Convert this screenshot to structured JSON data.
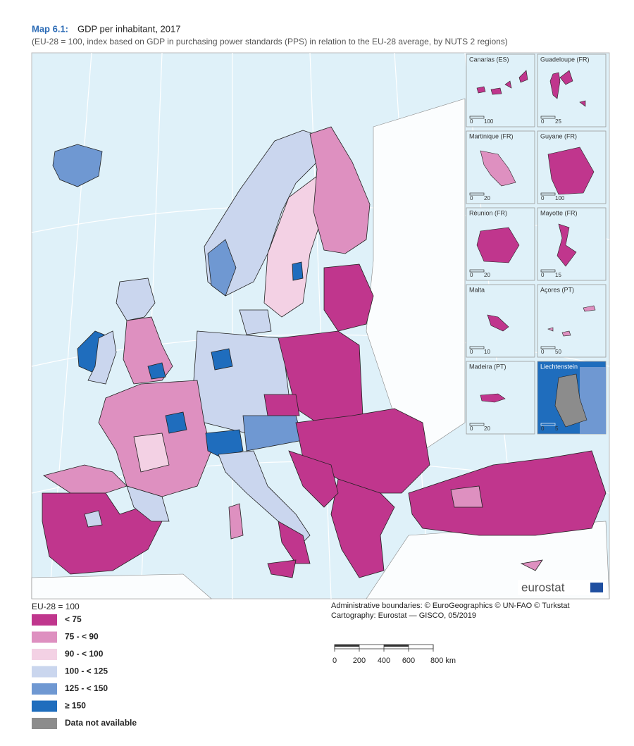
{
  "header": {
    "map_number": "Map 6.1:",
    "title": "GDP per inhabitant, 2017",
    "subtitle": "(EU-28 = 100, index based on GDP in purchasing power standards (PPS) in relation to the EU-28 average, by NUTS 2 regions)"
  },
  "insets": [
    {
      "name": "Canarias (ES)",
      "scale": [
        "0",
        "100"
      ]
    },
    {
      "name": "Guadeloupe (FR)",
      "scale": [
        "0",
        "25"
      ]
    },
    {
      "name": "Martinique (FR)",
      "scale": [
        "0",
        "20"
      ]
    },
    {
      "name": "Guyane (FR)",
      "scale": [
        "0",
        "100"
      ]
    },
    {
      "name": "Réunion (FR)",
      "scale": [
        "0",
        "20"
      ]
    },
    {
      "name": "Mayotte (FR)",
      "scale": [
        "0",
        "15"
      ]
    },
    {
      "name": "Malta",
      "scale": [
        "0",
        "10"
      ]
    },
    {
      "name": "Açores (PT)",
      "scale": [
        "0",
        "50"
      ]
    },
    {
      "name": "Madeira (PT)",
      "scale": [
        "0",
        "20"
      ]
    },
    {
      "name": "Liechtenstein",
      "scale": [
        "0",
        "5"
      ]
    }
  ],
  "logo": "eurostat",
  "legend": {
    "title": "EU-28 = 100",
    "items": [
      {
        "label": "< 75",
        "color": "#c0368d"
      },
      {
        "label": "75 - < 90",
        "color": "#de90c0"
      },
      {
        "label": "90 - < 100",
        "color": "#f3d1e4"
      },
      {
        "label": "100 - < 125",
        "color": "#cad6ee"
      },
      {
        "label": "125 - < 150",
        "color": "#6f98d2"
      },
      {
        "label": "≥ 150",
        "color": "#1f6dbd"
      },
      {
        "label": "Data not available",
        "color": "#8c8c8c"
      }
    ]
  },
  "credits": [
    "Administrative boundaries: © EuroGeographics © UN-FAO © Turkstat",
    "Cartography: Eurostat — GISCO, 05/2019"
  ],
  "scale_bar": [
    "0",
    "200",
    "400",
    "600",
    "800 km"
  ]
}
